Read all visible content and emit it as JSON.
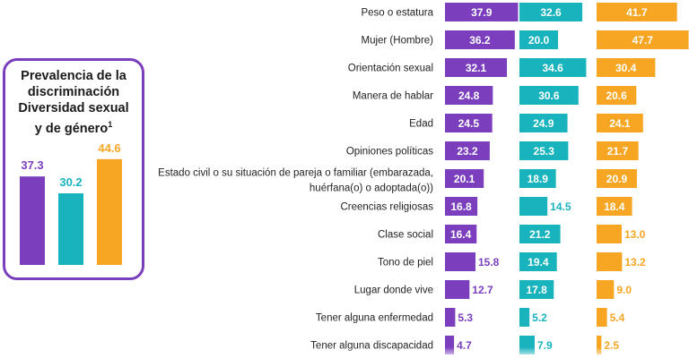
{
  "colors": {
    "purple": "#7b3fbe",
    "teal": "#19b3bd",
    "orange": "#f6a623"
  },
  "inset": {
    "title": "Prevalencia de la discriminación Diversidad sexual y de género",
    "title_lines": [
      "Prevalencia de la",
      "discriminación",
      "Diversidad sexual",
      "y de género"
    ],
    "superscript": "1"
  },
  "chart_data": [
    {
      "type": "bar",
      "title": "Prevalencia de la discriminación Diversidad sexual y de género",
      "categories": [
        "",
        "",
        ""
      ],
      "values": [
        37.3,
        30.2,
        44.6
      ],
      "value_labels": [
        "37.3",
        "30.2",
        "44.6"
      ],
      "ylim": [
        0,
        50
      ],
      "grid": false,
      "legend": "none",
      "colors": [
        "#7b3fbe",
        "#19b3bd",
        "#f6a623"
      ]
    },
    {
      "type": "bar",
      "orientation": "horizontal",
      "title": "",
      "categories": [
        "Peso o estatura",
        "Mujer (Hombre)",
        "Orientación sexual",
        "Manera de hablar",
        "Edad",
        "Opiniones políticas",
        "Estado civil o su situación de pareja o familiar (embarazada, huérfana(o) o adoptada(o))",
        "Creencias religiosas",
        "Clase social",
        "Tono de piel",
        "Lugar donde vive",
        "Tener alguna enfermedad",
        "Tener alguna discapacidad"
      ],
      "series": [
        {
          "values": [
            37.9,
            36.2,
            32.1,
            24.8,
            24.5,
            23.2,
            20.1,
            16.8,
            16.4,
            15.8,
            12.7,
            5.3,
            4.7
          ],
          "labels": [
            "37.9",
            "36.2",
            "32.1",
            "24.8",
            "24.5",
            "23.2",
            "20.1",
            "16.8",
            "16.4",
            "15.8",
            "12.7",
            "5.3",
            "4.7"
          ],
          "color": "#7b3fbe"
        },
        {
          "values": [
            32.6,
            20.0,
            34.6,
            30.6,
            24.9,
            25.3,
            18.9,
            14.5,
            21.2,
            19.4,
            17.8,
            5.2,
            7.9
          ],
          "labels": [
            "32.6",
            "20.0",
            "34.6",
            "30.6",
            "24.9",
            "25.3",
            "18.9",
            "14.5",
            "21.2",
            "19.4",
            "17.8",
            "5.2",
            "7.9"
          ],
          "color": "#19b3bd"
        },
        {
          "values": [
            41.7,
            47.7,
            30.4,
            20.6,
            24.1,
            21.7,
            20.9,
            18.4,
            13.0,
            13.2,
            9.0,
            5.4,
            2.5
          ],
          "labels": [
            "41.7",
            "47.7",
            "30.4",
            "20.6",
            "24.1",
            "21.7",
            "20.9",
            "18.4",
            "13.0",
            "13.2",
            "9.0",
            "5.4",
            "2.5"
          ],
          "color": "#f6a623"
        }
      ],
      "xlim": [
        0,
        50
      ],
      "grid": false,
      "legend": "none"
    }
  ]
}
